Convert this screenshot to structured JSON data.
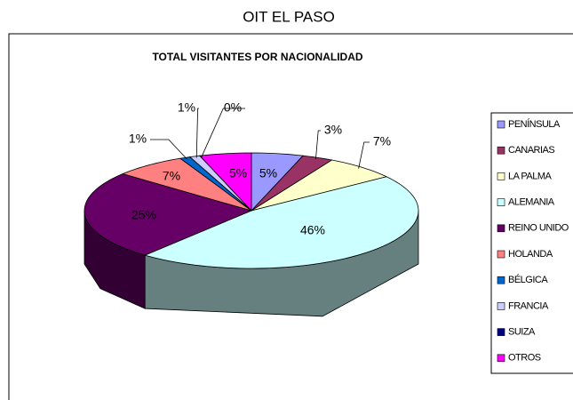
{
  "header": "OIT EL PASO",
  "chart_data": {
    "type": "pie3d",
    "title": "TOTAL VISITANTES POR NACIONALIDAD",
    "categories": [
      "PENÍNSULA",
      "CANARIAS",
      "LA PALMA",
      "ALEMANIA",
      "REINO UNIDO",
      "HOLANDA",
      "BÉLGICA",
      "FRANCIA",
      "SUIZA",
      "OTROS"
    ],
    "values": [
      5,
      3,
      7,
      46,
      25,
      7,
      1,
      1,
      0,
      5
    ],
    "value_labels": [
      "5%",
      "3%",
      "7%",
      "46%",
      "25%",
      "7%",
      "1%",
      "1%",
      "0%",
      "5%"
    ],
    "colors": [
      "#9999ff",
      "#993366",
      "#ffffcc",
      "#ccffff",
      "#660066",
      "#ff8080",
      "#0066cc",
      "#ccccff",
      "#000080",
      "#ff00ff"
    ],
    "legend": "right"
  }
}
